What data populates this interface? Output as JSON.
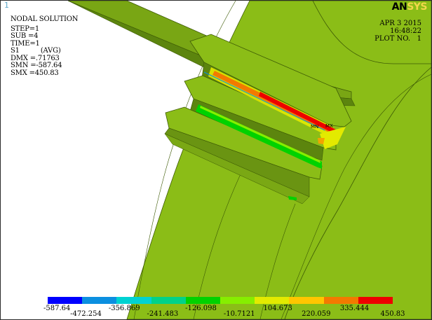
{
  "window": {
    "number": "1"
  },
  "logo": {
    "an": "AN",
    "sys": "SYS"
  },
  "info": {
    "title": "NODAL SOLUTION",
    "step": "STEP=1",
    "sub": "SUB =4",
    "time": "TIME=1",
    "result": "S1",
    "avg": "(AVG)",
    "dmx": "DMX =.71763",
    "smn": "SMN =-587.64",
    "smx": "SMX =450.83"
  },
  "date": {
    "date": "APR  3 2015",
    "time": "16:48:22",
    "plot": "PLOT NO.   1"
  },
  "markers": {
    "mn": "MN",
    "mx": "MX"
  },
  "legend": {
    "colors": [
      "#0000ff",
      "#0b8fe0",
      "#00d2d2",
      "#00d28a",
      "#00d200",
      "#86ee00",
      "#e3ea00",
      "#ffc600",
      "#f27a00",
      "#ee0000"
    ],
    "labels": [
      "-587.64",
      "-472.254",
      "-356.869",
      "-241.483",
      "-126.098",
      "-10.7121",
      "104.673",
      "220.059",
      "335.444",
      "450.83"
    ]
  },
  "palette": {
    "part_green": "#8bbd17",
    "part_dark": "#6a9412",
    "part_shadow": "#557a0c",
    "groove_shade": "#3f5e08"
  }
}
